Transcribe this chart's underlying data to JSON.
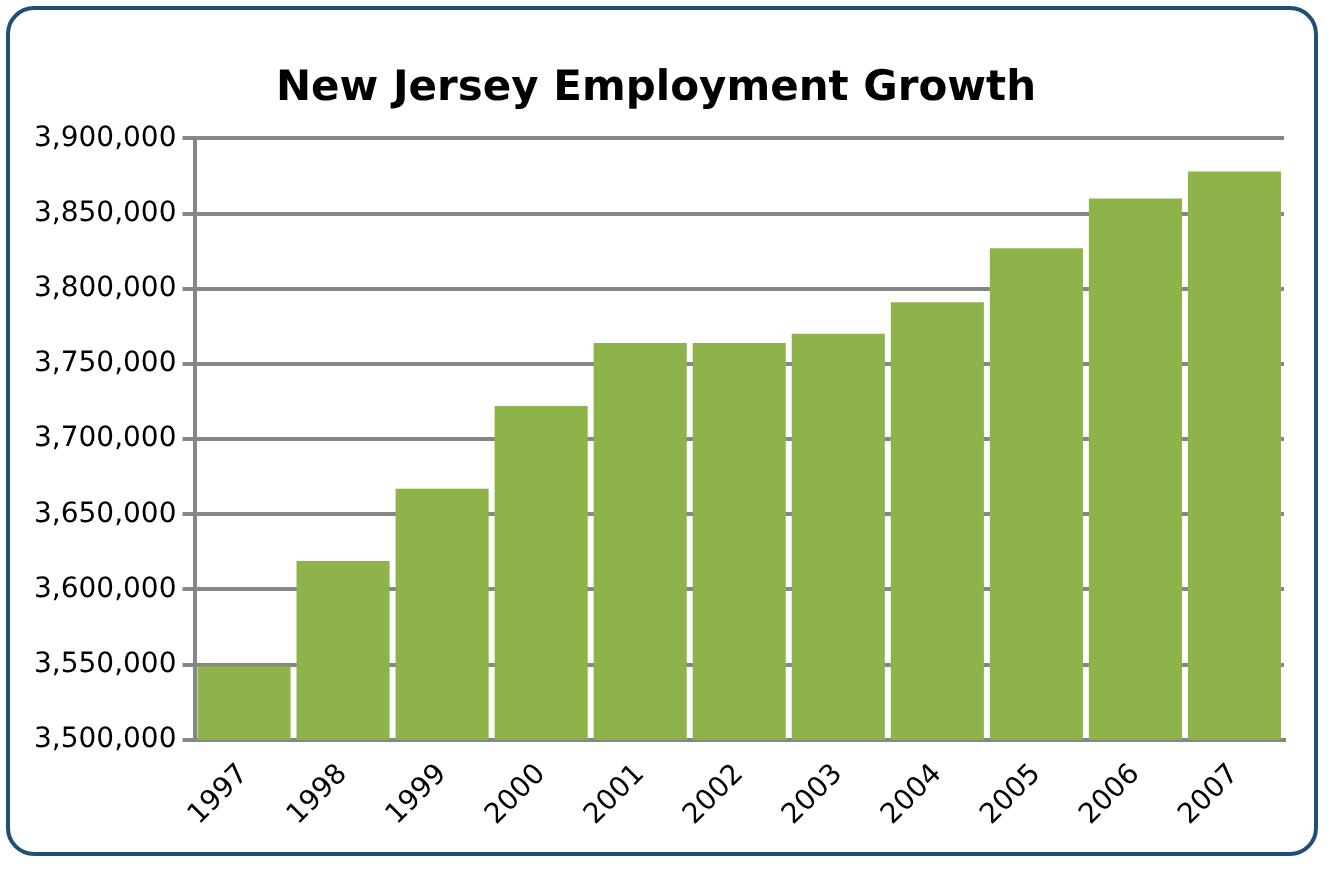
{
  "chart_data": {
    "type": "bar",
    "title": "New Jersey Employment Growth",
    "categories": [
      "1997",
      "1998",
      "1999",
      "2000",
      "2001",
      "2002",
      "2003",
      "2004",
      "2005",
      "2006",
      "2007"
    ],
    "values": [
      3549000,
      3619000,
      3667000,
      3722000,
      3764000,
      3764000,
      3770000,
      3791000,
      3827000,
      3860000,
      3878000
    ],
    "color": "#8fb34b",
    "ylim": [
      3500000,
      3900000
    ],
    "yticks": [
      {
        "value": 3500000,
        "label": "3,500,000"
      },
      {
        "value": 3550000,
        "label": "3,550,000"
      },
      {
        "value": 3600000,
        "label": "3,600,000"
      },
      {
        "value": 3650000,
        "label": "3,650,000"
      },
      {
        "value": 3700000,
        "label": "3,700,000"
      },
      {
        "value": 3750000,
        "label": "3,750,000"
      },
      {
        "value": 3800000,
        "label": "3,800,000"
      },
      {
        "value": 3850000,
        "label": "3,850,000"
      },
      {
        "value": 3900000,
        "label": "3,900,000"
      }
    ],
    "grid": "y",
    "legend": false
  }
}
